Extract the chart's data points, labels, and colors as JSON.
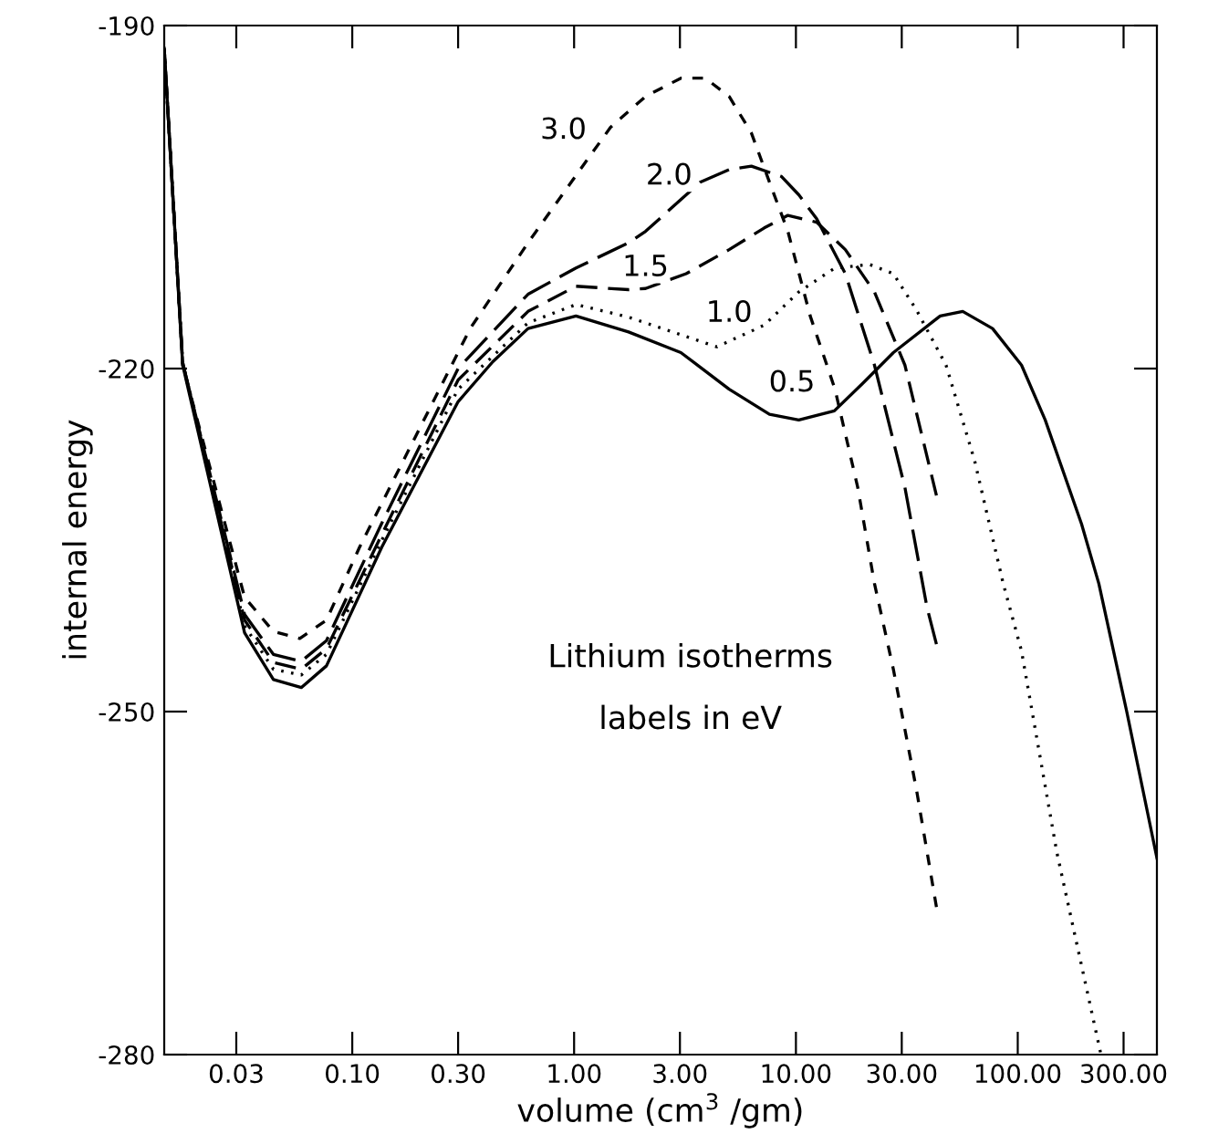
{
  "chart_data": {
    "type": "line",
    "xlabel": "volume (cm$^{3}$ /gm)",
    "ylabel": "internal energy",
    "log": "x",
    "xlim": [
      0.0142,
      424
    ],
    "ylim": [
      -280,
      -190
    ],
    "xticks": [
      {
        "value": 0.03,
        "label": "0.03"
      },
      {
        "value": 0.1,
        "label": "0.10"
      },
      {
        "value": 0.3,
        "label": "0.30"
      },
      {
        "value": 1,
        "label": "1.00"
      },
      {
        "value": 3,
        "label": "3.00"
      },
      {
        "value": 10,
        "label": "10.00"
      },
      {
        "value": 30,
        "label": "30.00"
      },
      {
        "value": 100,
        "label": "100.00"
      },
      {
        "value": 300,
        "label": "300.00"
      }
    ],
    "yticks": [
      -190,
      -220,
      -250,
      -280
    ],
    "grid": false,
    "legend": false,
    "marker": "none",
    "annotations": [
      {
        "text": "3.0",
        "x": 0.895,
        "y": -199.2
      },
      {
        "text": "2.0",
        "x": 2.68,
        "y": -203.2
      },
      {
        "text": "1.5",
        "x": 2.1,
        "y": -211.2
      },
      {
        "text": "1.0",
        "x": 5.0,
        "y": -215.2
      },
      {
        "text": "0.5",
        "x": 9.6,
        "y": -221.3
      },
      "Lithium isotherms",
      "labels in eV"
    ],
    "series": [
      {
        "color": "#000000",
        "line_style": "solid",
        "x": [
          0.0142,
          0.0172,
          0.0327,
          0.0441,
          0.0589,
          0.0765,
          0.136,
          0.3,
          0.43,
          0.62,
          1.02,
          1.76,
          3.03,
          5.0,
          7.6,
          10.3,
          14.9,
          20,
          27.5,
          44.7,
          56.5,
          77,
          104,
          133,
          194,
          232,
          310,
          424
        ],
        "values": [
          -192,
          -219.7,
          -243.1,
          -247.2,
          -247.9,
          -246.0,
          -235.6,
          -222.9,
          -219.4,
          -216.5,
          -215.4,
          -216.8,
          -218.6,
          -221.8,
          -224.0,
          -224.5,
          -223.7,
          -221.3,
          -218.6,
          -215.4,
          -215.0,
          -216.5,
          -219.7,
          -224.5,
          -233.6,
          -238.8,
          -250.0,
          -262.8
        ]
      },
      {
        "color": "#000000",
        "line_style": "dotted",
        "x": [
          0.0142,
          0.0172,
          0.0327,
          0.0441,
          0.0589,
          0.0765,
          0.136,
          0.3,
          0.62,
          1.02,
          1.76,
          4.4,
          7.2,
          10.3,
          15,
          21.5,
          27.5,
          35,
          47.5,
          64,
          86,
          104,
          150,
          236
        ],
        "values": [
          -192,
          -219.5,
          -242.5,
          -246.3,
          -246.8,
          -245.0,
          -235.0,
          -221.8,
          -216.0,
          -214.4,
          -215.5,
          -218.1,
          -216.2,
          -213.3,
          -211.2,
          -210.9,
          -211.7,
          -214.9,
          -219.7,
          -228.1,
          -238.8,
          -244.7,
          -262.3,
          -279.8
        ]
      },
      {
        "color": "#000000",
        "line_style": "dashed",
        "x": [
          0.0142,
          0.0172,
          0.0327,
          0.0441,
          0.0589,
          0.0765,
          0.136,
          0.3,
          0.62,
          1.02,
          1.76,
          2.1,
          3.2,
          5.0,
          7.2,
          9.2,
          12.4,
          16.7,
          22.6,
          31,
          43
        ],
        "values": [
          -192,
          -219.5,
          -242.0,
          -245.7,
          -246.3,
          -244.5,
          -234.5,
          -221.0,
          -215.0,
          -212.8,
          -213.1,
          -213.0,
          -211.7,
          -209.6,
          -207.7,
          -206.6,
          -207.2,
          -209.6,
          -213.3,
          -219.7,
          -231.1
        ]
      },
      {
        "color": "#000000",
        "line_style": "dashed",
        "x": [
          0.0142,
          0.0172,
          0.0327,
          0.0441,
          0.0589,
          0.0765,
          0.136,
          0.3,
          0.62,
          1.02,
          1.76,
          2.1,
          3.7,
          5.0,
          6.3,
          8.6,
          10.3,
          12.4,
          16.7,
          22.6,
          31,
          39,
          43
        ],
        "values": [
          -192,
          -219.5,
          -241.5,
          -245.0,
          -245.6,
          -243.8,
          -233.5,
          -220.0,
          -213.5,
          -211.2,
          -209.0,
          -208.0,
          -203.7,
          -202.6,
          -202.3,
          -203.2,
          -204.8,
          -206.9,
          -211.7,
          -219.7,
          -230.4,
          -240.9,
          -244.1
        ]
      },
      {
        "color": "#000000",
        "line_style": "dashed",
        "x": [
          0.0142,
          0.0172,
          0.0327,
          0.0441,
          0.058,
          0.0765,
          0.108,
          0.34,
          0.62,
          1.16,
          1.46,
          2.1,
          3.03,
          3.9,
          5.0,
          6.3,
          7.6,
          9.2,
          11.6,
          15,
          19,
          22.6,
          27.5,
          35,
          43
        ],
        "values": [
          -192,
          -219.7,
          -240.0,
          -243.0,
          -243.6,
          -242.0,
          -235.6,
          -216.5,
          -209.0,
          -201.6,
          -198.9,
          -196.2,
          -194.6,
          -194.6,
          -196.2,
          -199.4,
          -203.7,
          -208.0,
          -215.4,
          -221.8,
          -230.4,
          -238.8,
          -246.3,
          -256.9,
          -267.1
        ]
      }
    ]
  }
}
